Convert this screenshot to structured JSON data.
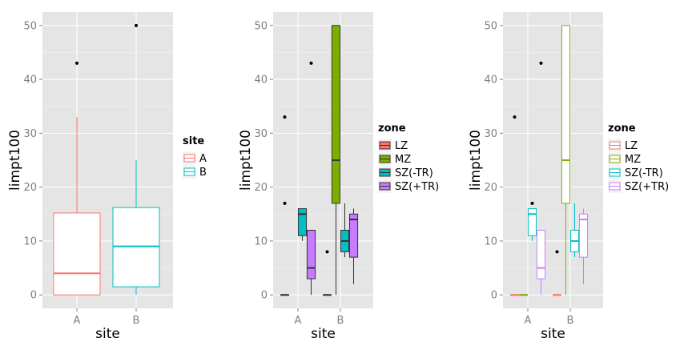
{
  "chart_data": [
    {
      "type": "boxplot",
      "xlabel": "site",
      "ylabel": "limpt100",
      "ylim": [
        -2.5,
        52.5
      ],
      "yticks": [
        0,
        10,
        20,
        30,
        40,
        50
      ],
      "categories": [
        "A",
        "B"
      ],
      "grid": true,
      "legend": {
        "title": "site",
        "placement": "right",
        "entries": [
          "A",
          "B"
        ]
      },
      "boxes": [
        {
          "category": "A",
          "group": "A",
          "fill": "#ffffff",
          "stroke": "#F8766D",
          "min": 0,
          "q1": 0,
          "median": 4,
          "q3": 15.2,
          "max": 33,
          "outliers": [
            43
          ]
        },
        {
          "category": "B",
          "group": "B",
          "fill": "#ffffff",
          "stroke": "#00BFC4",
          "min": 0,
          "q1": 1.5,
          "median": 9,
          "q3": 16.2,
          "max": 25,
          "outliers": [
            50
          ]
        }
      ]
    },
    {
      "type": "boxplot",
      "xlabel": "site",
      "ylabel": "limpt100",
      "ylim": [
        -2.5,
        52.5
      ],
      "yticks": [
        0,
        10,
        20,
        30,
        40,
        50
      ],
      "categories": [
        "A",
        "B"
      ],
      "grid": true,
      "legend": {
        "title": "zone",
        "placement": "right",
        "entries": [
          "LZ",
          "MZ",
          "SZ(-TR)",
          "SZ(+TR)"
        ]
      },
      "boxes": [
        {
          "category": "A",
          "group": "LZ",
          "fill": "#F8766D",
          "stroke": "#333333",
          "min": 0,
          "q1": 0,
          "median": 0,
          "q3": 0,
          "max": 0,
          "outliers": [
            33,
            17
          ]
        },
        {
          "category": "A",
          "group": "SZ(-TR)",
          "fill": "#00BFC4",
          "stroke": "#333333",
          "min": 10,
          "q1": 11,
          "median": 15,
          "q3": 16,
          "max": 16,
          "outliers": []
        },
        {
          "category": "A",
          "group": "SZ(+TR)",
          "fill": "#C77CFF",
          "stroke": "#333333",
          "min": 0,
          "q1": 3,
          "median": 5,
          "q3": 12,
          "max": 12,
          "outliers": [
            43
          ]
        },
        {
          "category": "B",
          "group": "LZ",
          "fill": "#F8766D",
          "stroke": "#333333",
          "min": 0,
          "q1": 0,
          "median": 0,
          "q3": 0,
          "max": 0,
          "outliers": [
            8
          ]
        },
        {
          "category": "B",
          "group": "MZ",
          "fill": "#7CAE00",
          "stroke": "#333333",
          "min": 0,
          "q1": 17,
          "median": 25,
          "q3": 50,
          "max": 50,
          "outliers": []
        },
        {
          "category": "B",
          "group": "SZ(-TR)",
          "fill": "#00BFC4",
          "stroke": "#333333",
          "min": 7,
          "q1": 8,
          "median": 10,
          "q3": 12,
          "max": 17,
          "outliers": []
        },
        {
          "category": "B",
          "group": "SZ(+TR)",
          "fill": "#C77CFF",
          "stroke": "#333333",
          "min": 2,
          "q1": 7,
          "median": 14,
          "q3": 15,
          "max": 16,
          "outliers": []
        }
      ]
    },
    {
      "type": "boxplot",
      "xlabel": "site",
      "ylabel": "limpt100",
      "ylim": [
        -2.5,
        52.5
      ],
      "yticks": [
        0,
        10,
        20,
        30,
        40,
        50
      ],
      "categories": [
        "A",
        "B"
      ],
      "grid": true,
      "legend": {
        "title": "zone",
        "placement": "right",
        "entries": [
          "LZ",
          "MZ",
          "SZ(-TR)",
          "SZ(+TR)"
        ]
      },
      "boxes": [
        {
          "category": "A",
          "group": "LZ",
          "fill": "#ffffff",
          "stroke": "#F8766D",
          "min": 0,
          "q1": 0,
          "median": 0,
          "q3": 0,
          "max": 0,
          "outliers": [
            33
          ]
        },
        {
          "category": "A",
          "group": "MZ",
          "fill": "#ffffff",
          "stroke": "#7CAE00",
          "min": 0,
          "q1": 0,
          "median": 0,
          "q3": 0,
          "max": 0,
          "outliers": []
        },
        {
          "category": "A",
          "group": "SZ(-TR)",
          "fill": "#ffffff",
          "stroke": "#00BFC4",
          "min": 10,
          "q1": 11,
          "median": 15,
          "q3": 16,
          "max": 16,
          "outliers": [
            17
          ]
        },
        {
          "category": "A",
          "group": "SZ(+TR)",
          "fill": "#ffffff",
          "stroke": "#C77CFF",
          "min": 0,
          "q1": 3,
          "median": 5,
          "q3": 12,
          "max": 12,
          "outliers": [
            43
          ]
        },
        {
          "category": "B",
          "group": "LZ",
          "fill": "#ffffff",
          "stroke": "#F8766D",
          "min": 0,
          "q1": 0,
          "median": 0,
          "q3": 0,
          "max": 0,
          "outliers": [
            8
          ]
        },
        {
          "category": "B",
          "group": "MZ",
          "fill": "#ffffff",
          "stroke": "#7CAE00",
          "min": 0,
          "q1": 17,
          "median": 25,
          "q3": 50,
          "max": 50,
          "outliers": []
        },
        {
          "category": "B",
          "group": "SZ(-TR)",
          "fill": "#ffffff",
          "stroke": "#00BFC4",
          "min": 7,
          "q1": 8,
          "median": 10,
          "q3": 12,
          "max": 17,
          "outliers": []
        },
        {
          "category": "B",
          "group": "SZ(+TR)",
          "fill": "#ffffff",
          "stroke": "#C77CFF",
          "min": 2,
          "q1": 7,
          "median": 14,
          "q3": 15,
          "max": 16,
          "outliers": []
        }
      ]
    }
  ],
  "legend_colors": {
    "A": "#F8766D",
    "B": "#00BFC4",
    "LZ": "#F8766D",
    "MZ": "#7CAE00",
    "SZ(-TR)": "#00BFC4",
    "SZ(+TR)": "#C77CFF"
  }
}
